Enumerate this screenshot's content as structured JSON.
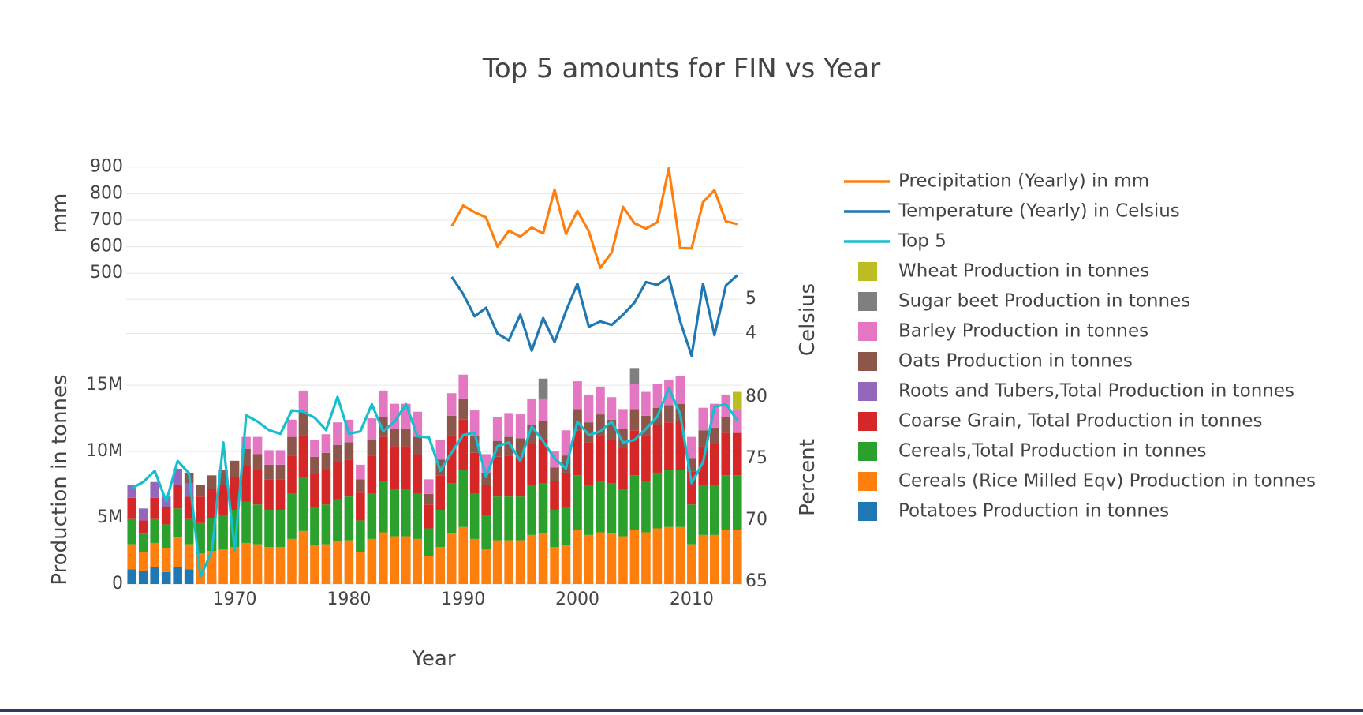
{
  "chart_data": {
    "type": "bar",
    "title": "Top 5 amounts for FIN vs Year",
    "xlabel": "Year",
    "x_ticks": [
      "1970",
      "1980",
      "1990",
      "2000",
      "2010"
    ],
    "x_range": [
      1960.5,
      2014.5
    ],
    "panels": {
      "precipitation": {
        "ylabel": "mm",
        "ylim": [
          450,
          920
        ],
        "ticks": [
          "500",
          "600",
          "700",
          "800",
          "900"
        ]
      },
      "temperature": {
        "ylabel": "Celsius",
        "ylim": [
          3.0,
          5.9
        ],
        "ticks": [
          "4",
          "5"
        ]
      },
      "production": {
        "ylabel": "Production in tonnes",
        "ylim": [
          0,
          16200000
        ],
        "ticks": [
          "0",
          "5M",
          "10M",
          "15M"
        ]
      },
      "percent": {
        "ylabel": "Percent",
        "ylim": [
          64.5,
          83
        ],
        "ticks": [
          "65",
          "70",
          "75",
          "80"
        ]
      }
    },
    "legend": [
      {
        "key": "precip",
        "label": "Precipitation (Yearly) in mm",
        "kind": "line",
        "color": "#ff7f0e"
      },
      {
        "key": "temp",
        "label": "Temperature (Yearly) in Celsius",
        "kind": "line",
        "color": "#1f77b4"
      },
      {
        "key": "top5",
        "label": "Top 5",
        "kind": "line",
        "color": "#17becf"
      },
      {
        "key": "wheat",
        "label": "Wheat Production in tonnes",
        "kind": "bar",
        "color": "#bcbd22"
      },
      {
        "key": "sugar",
        "label": "Sugar beet Production in tonnes",
        "kind": "bar",
        "color": "#7f7f7f"
      },
      {
        "key": "barley",
        "label": "Barley Production in tonnes",
        "kind": "bar",
        "color": "#e377c2"
      },
      {
        "key": "oats",
        "label": "Oats Production in tonnes",
        "kind": "bar",
        "color": "#8c564b"
      },
      {
        "key": "roots",
        "label": "Roots and Tubers,Total Production in tonnes",
        "kind": "bar",
        "color": "#9467bd"
      },
      {
        "key": "coarse",
        "label": "Coarse Grain, Total Production in tonnes",
        "kind": "bar",
        "color": "#d62728"
      },
      {
        "key": "cereals",
        "label": "Cereals,Total Production in tonnes",
        "kind": "bar",
        "color": "#2ca02c"
      },
      {
        "key": "rice",
        "label": "Cereals (Rice Milled Eqv) Production in tonnes",
        "kind": "bar",
        "color": "#ff7f0e"
      },
      {
        "key": "potatoes",
        "label": "Potatoes Production in tonnes",
        "kind": "bar",
        "color": "#1f77b4"
      }
    ],
    "stack_order": [
      "potatoes",
      "rice",
      "cereals",
      "coarse",
      "roots",
      "oats",
      "barley",
      "sugar",
      "wheat"
    ],
    "years": [
      1961,
      1962,
      1963,
      1964,
      1965,
      1966,
      1967,
      1968,
      1969,
      1970,
      1971,
      1972,
      1973,
      1974,
      1975,
      1976,
      1977,
      1978,
      1979,
      1980,
      1981,
      1982,
      1983,
      1984,
      1985,
      1986,
      1987,
      1988,
      1989,
      1990,
      1991,
      1992,
      1993,
      1994,
      1995,
      1996,
      1997,
      1998,
      1999,
      2000,
      2001,
      2002,
      2003,
      2004,
      2005,
      2006,
      2007,
      2008,
      2009,
      2010,
      2011,
      2012,
      2013,
      2014
    ],
    "series": {
      "potatoes": [
        1.1,
        1.0,
        1.3,
        0.9,
        1.3,
        1.1,
        0,
        0,
        0,
        0,
        0,
        0,
        0,
        0,
        0,
        0,
        0,
        0,
        0,
        0,
        0,
        0,
        0,
        0,
        0,
        0,
        0,
        0,
        0,
        0,
        0,
        0,
        0,
        0,
        0,
        0,
        0,
        0,
        0,
        0,
        0,
        0,
        0,
        0,
        0,
        0,
        0,
        0,
        0,
        0,
        0,
        0,
        0,
        0
      ],
      "rice": [
        1.9,
        1.4,
        1.8,
        1.8,
        2.2,
        1.9,
        2.3,
        2.5,
        2.6,
        2.8,
        3.1,
        3.0,
        2.8,
        2.8,
        3.4,
        4.0,
        2.9,
        3.0,
        3.2,
        3.3,
        2.4,
        3.4,
        3.9,
        3.6,
        3.6,
        3.4,
        2.1,
        2.8,
        3.8,
        4.3,
        3.4,
        2.6,
        3.3,
        3.3,
        3.3,
        3.7,
        3.8,
        2.8,
        2.9,
        4.1,
        3.7,
        3.9,
        3.8,
        3.6,
        4.1,
        3.9,
        4.2,
        4.3,
        4.3,
        3.0,
        3.7,
        3.7,
        4.1,
        4.1
      ],
      "cereals": [
        1.9,
        1.4,
        1.8,
        1.8,
        2.2,
        1.9,
        2.3,
        2.5,
        2.6,
        2.8,
        3.1,
        3.0,
        2.8,
        2.8,
        3.4,
        4.0,
        2.9,
        3.0,
        3.2,
        3.3,
        2.4,
        3.4,
        3.9,
        3.6,
        3.6,
        3.4,
        2.1,
        2.8,
        3.8,
        4.3,
        3.4,
        2.6,
        3.3,
        3.3,
        3.3,
        3.7,
        3.8,
        2.8,
        2.9,
        4.1,
        3.7,
        3.9,
        3.8,
        3.6,
        4.1,
        3.9,
        4.2,
        4.3,
        4.3,
        3.0,
        3.7,
        3.7,
        4.1,
        4.1
      ],
      "coarse": [
        1.6,
        1.0,
        1.6,
        1.3,
        1.8,
        1.7,
        2.0,
        2.2,
        2.3,
        2.5,
        2.7,
        2.6,
        2.3,
        2.3,
        2.9,
        3.2,
        2.5,
        2.6,
        2.8,
        2.8,
        2.1,
        2.9,
        3.3,
        3.2,
        3.2,
        3.0,
        1.8,
        2.6,
        3.6,
        3.8,
        3.1,
        2.3,
        3.0,
        3.1,
        3.0,
        3.2,
        3.3,
        2.2,
        2.6,
        3.4,
        3.3,
        3.4,
        3.3,
        3.1,
        3.4,
        3.4,
        3.6,
        3.6,
        3.7,
        2.5,
        3.0,
        3.2,
        3.2,
        3.2
      ],
      "roots": [
        1.0,
        0.9,
        1.2,
        0.8,
        1.2,
        1.0,
        0,
        0,
        0,
        0,
        0,
        0,
        0,
        0,
        0,
        0,
        0,
        0,
        0,
        0,
        0,
        0,
        0,
        0,
        0,
        0,
        0,
        0,
        0,
        0,
        0,
        0,
        0,
        0,
        0,
        0,
        0,
        0,
        0,
        0,
        0,
        0,
        0,
        0,
        0,
        0,
        0,
        0,
        0,
        0,
        0,
        0,
        0,
        0
      ],
      "oats": [
        0,
        0,
        0,
        0,
        0,
        0.8,
        0.9,
        1.0,
        1.1,
        1.2,
        1.3,
        1.2,
        1.1,
        1.1,
        1.4,
        1.8,
        1.3,
        1.3,
        1.3,
        1.3,
        1.0,
        1.2,
        1.5,
        1.3,
        1.3,
        1.3,
        0.8,
        1.2,
        1.5,
        1.6,
        1.3,
        0.9,
        1.2,
        1.4,
        1.4,
        1.4,
        1.4,
        1.0,
        1.3,
        1.6,
        1.5,
        1.6,
        1.5,
        1.4,
        1.6,
        1.5,
        1.3,
        1.3,
        1.3,
        1.0,
        1.2,
        1.2,
        1.2,
        0
      ],
      "barley": [
        0,
        0,
        0,
        0,
        0,
        0,
        0,
        0,
        0,
        0,
        0.9,
        1.3,
        1.1,
        1.1,
        1.3,
        1.6,
        1.3,
        1.4,
        1.7,
        1.7,
        1.1,
        1.6,
        2.0,
        1.9,
        1.9,
        1.9,
        1.1,
        1.5,
        1.7,
        1.8,
        1.9,
        1.4,
        1.8,
        1.8,
        1.8,
        2.0,
        1.7,
        1.2,
        1.9,
        2.1,
        2.1,
        2.1,
        1.7,
        1.5,
        1.9,
        1.8,
        1.8,
        1.9,
        2.1,
        1.6,
        1.7,
        1.8,
        1.7,
        1.8
      ],
      "sugar": [
        0,
        0,
        0,
        0,
        0,
        0,
        0,
        0,
        0,
        0,
        0,
        0,
        0,
        0,
        0,
        0,
        0,
        0,
        0,
        0,
        0,
        0,
        0,
        0,
        0,
        0,
        0,
        0,
        0,
        0,
        0,
        0,
        0,
        0,
        0,
        0,
        1.5,
        0,
        0,
        0,
        0,
        0,
        0,
        0,
        1.2,
        0,
        0,
        0,
        0,
        0,
        0,
        0,
        0,
        0
      ],
      "wheat": [
        0,
        0,
        0,
        0,
        0,
        0,
        0,
        0,
        0,
        0,
        0,
        0,
        0,
        0,
        0,
        0,
        0,
        0,
        0,
        0,
        0,
        0,
        0,
        0,
        0,
        0,
        0,
        0,
        0,
        0,
        0,
        0,
        0,
        0,
        0,
        0,
        0,
        0,
        0,
        0,
        0,
        0,
        0,
        0,
        0,
        0,
        0,
        0,
        0,
        0,
        0,
        0,
        0,
        1.3
      ],
      "top5": [
        72.6,
        73.1,
        74.0,
        71.5,
        74.8,
        73.8,
        65.4,
        67.5,
        76.3,
        67.5,
        78.5,
        78.0,
        77.3,
        77.0,
        78.9,
        78.8,
        78.3,
        77.3,
        80.0,
        77.0,
        77.2,
        79.4,
        77.2,
        78.0,
        79.4,
        76.8,
        76.7,
        74.0,
        75.5,
        76.9,
        77.1,
        73.5,
        76.0,
        76.3,
        74.8,
        77.6,
        76.4,
        75.0,
        74.2,
        78.0,
        76.9,
        77.2,
        78.0,
        76.3,
        76.5,
        77.4,
        78.4,
        80.7,
        78.6,
        73.0,
        74.7,
        79.2,
        79.4,
        78.1
      ],
      "precip": [
        null,
        null,
        null,
        null,
        null,
        null,
        null,
        null,
        null,
        null,
        null,
        null,
        null,
        null,
        null,
        null,
        null,
        null,
        null,
        null,
        null,
        null,
        null,
        null,
        null,
        null,
        null,
        null,
        677,
        755,
        730,
        710,
        600,
        660,
        638,
        672,
        650,
        815,
        648,
        735,
        658,
        520,
        578,
        750,
        688,
        668,
        692,
        895,
        595,
        593,
        768,
        813,
        695,
        685
      ],
      "temp": [
        null,
        null,
        null,
        null,
        null,
        null,
        null,
        null,
        null,
        null,
        null,
        null,
        null,
        null,
        null,
        null,
        null,
        null,
        null,
        null,
        null,
        null,
        null,
        null,
        null,
        null,
        null,
        null,
        5.65,
        5.15,
        4.5,
        4.75,
        4.0,
        3.8,
        4.55,
        3.5,
        4.45,
        3.75,
        4.65,
        5.45,
        4.2,
        4.35,
        4.25,
        4.55,
        4.9,
        5.5,
        5.42,
        5.65,
        4.35,
        3.35,
        5.45,
        3.95,
        5.4,
        5.7
      ]
    }
  }
}
